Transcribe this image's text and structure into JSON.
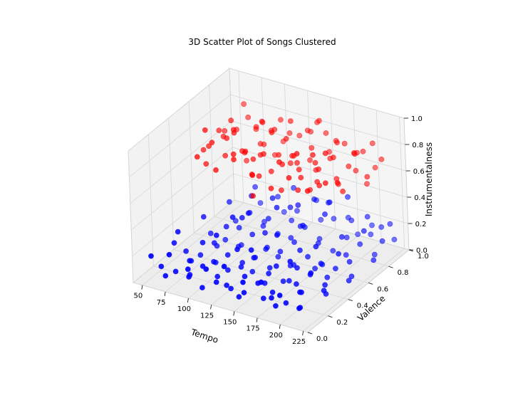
{
  "chart_data": {
    "type": "scatter",
    "projection": "3d",
    "title": "3D Scatter Plot of Songs Clustered",
    "xlabel": "Tempo",
    "ylabel": "Valence",
    "zlabel": "Instrumentalness",
    "xlim": [
      40,
      230
    ],
    "ylim": [
      0.0,
      1.0
    ],
    "zlim": [
      0.0,
      1.0
    ],
    "x_ticks": [
      "50",
      "75",
      "100",
      "125",
      "150",
      "175",
      "200",
      "225"
    ],
    "y_ticks": [
      "0.0",
      "0.2",
      "0.4",
      "0.6",
      "0.8",
      "1.0"
    ],
    "z_ticks": [
      "0.0",
      "0.2",
      "0.4",
      "0.6",
      "0.8",
      "1.0"
    ],
    "grid": true,
    "legend": "none",
    "series": [
      {
        "color": "#ff0000",
        "points": [
          [
            60,
            0.6,
            0.7
          ],
          [
            65,
            0.7,
            0.72
          ],
          [
            55,
            0.8,
            0.68
          ],
          [
            70,
            0.9,
            0.75
          ],
          [
            80,
            0.6,
            0.8
          ],
          [
            85,
            0.7,
            0.65
          ],
          [
            90,
            0.8,
            0.78
          ],
          [
            75,
            0.5,
            0.82
          ],
          [
            95,
            0.9,
            0.7
          ],
          [
            100,
            0.6,
            0.74
          ],
          [
            105,
            0.7,
            0.66
          ],
          [
            110,
            0.8,
            0.8
          ],
          [
            115,
            0.9,
            0.72
          ],
          [
            120,
            0.6,
            0.76
          ],
          [
            125,
            0.7,
            0.7
          ],
          [
            130,
            0.8,
            0.64
          ],
          [
            135,
            0.9,
            0.78
          ],
          [
            140,
            0.6,
            0.72
          ],
          [
            145,
            0.7,
            0.68
          ],
          [
            150,
            0.8,
            0.74
          ],
          [
            155,
            0.9,
            0.8
          ],
          [
            160,
            0.6,
            0.66
          ],
          [
            165,
            0.7,
            0.72
          ],
          [
            170,
            0.8,
            0.7
          ],
          [
            175,
            0.9,
            0.76
          ],
          [
            180,
            0.6,
            0.64
          ],
          [
            185,
            0.7,
            0.8
          ],
          [
            190,
            0.8,
            0.68
          ],
          [
            195,
            0.9,
            0.74
          ],
          [
            200,
            0.6,
            0.7
          ],
          [
            62,
            0.55,
            0.6
          ],
          [
            72,
            0.65,
            0.62
          ],
          [
            82,
            0.75,
            0.6
          ],
          [
            92,
            0.85,
            0.62
          ],
          [
            102,
            0.95,
            0.6
          ],
          [
            112,
            0.55,
            0.62
          ],
          [
            122,
            0.65,
            0.6
          ],
          [
            132,
            0.75,
            0.62
          ],
          [
            142,
            0.85,
            0.6
          ],
          [
            152,
            0.95,
            0.62
          ],
          [
            162,
            0.55,
            0.6
          ],
          [
            172,
            0.65,
            0.62
          ],
          [
            182,
            0.75,
            0.6
          ],
          [
            192,
            0.85,
            0.62
          ],
          [
            202,
            0.95,
            0.6
          ],
          [
            68,
            0.5,
            0.9
          ],
          [
            88,
            0.6,
            0.88
          ],
          [
            108,
            0.7,
            0.92
          ],
          [
            128,
            0.8,
            0.9
          ],
          [
            148,
            0.9,
            0.88
          ],
          [
            168,
            0.5,
            0.92
          ],
          [
            188,
            0.6,
            0.9
          ],
          [
            208,
            0.7,
            0.88
          ],
          [
            78,
            0.8,
            0.5
          ],
          [
            98,
            0.9,
            0.52
          ],
          [
            118,
            0.5,
            0.5
          ],
          [
            138,
            0.6,
            0.52
          ],
          [
            158,
            0.7,
            0.5
          ],
          [
            178,
            0.8,
            0.52
          ],
          [
            198,
            0.9,
            0.5
          ],
          [
            58,
            0.72,
            0.74
          ],
          [
            66,
            0.82,
            0.7
          ],
          [
            76,
            0.92,
            0.66
          ],
          [
            86,
            0.62,
            0.84
          ],
          [
            96,
            0.52,
            0.76
          ],
          [
            106,
            0.62,
            0.68
          ],
          [
            116,
            0.72,
            0.84
          ],
          [
            126,
            0.82,
            0.62
          ],
          [
            136,
            0.92,
            0.76
          ],
          [
            146,
            0.52,
            0.8
          ],
          [
            156,
            0.62,
            0.7
          ],
          [
            166,
            0.72,
            0.66
          ],
          [
            176,
            0.82,
            0.82
          ],
          [
            186,
            0.92,
            0.7
          ],
          [
            196,
            0.52,
            0.74
          ],
          [
            64,
            0.45,
            0.72
          ],
          [
            84,
            0.45,
            0.66
          ],
          [
            104,
            0.45,
            0.78
          ],
          [
            124,
            0.45,
            0.7
          ],
          [
            144,
            0.45,
            0.64
          ],
          [
            164,
            0.45,
            0.76
          ],
          [
            184,
            0.45,
            0.7
          ],
          [
            60,
            0.95,
            0.8
          ],
          [
            80,
            0.95,
            0.7
          ],
          [
            100,
            0.95,
            0.76
          ],
          [
            120,
            0.95,
            0.68
          ],
          [
            140,
            0.95,
            0.82
          ],
          [
            160,
            0.95,
            0.72
          ],
          [
            180,
            0.95,
            0.66
          ],
          [
            200,
            0.95,
            0.78
          ],
          [
            54,
            0.6,
            0.66
          ],
          [
            74,
            0.7,
            0.86
          ],
          [
            94,
            0.8,
            0.66
          ],
          [
            114,
            0.6,
            0.58
          ],
          [
            134,
            0.7,
            0.84
          ],
          [
            154,
            0.8,
            0.58
          ],
          [
            174,
            0.6,
            0.86
          ],
          [
            194,
            0.7,
            0.56
          ],
          [
            210,
            0.8,
            0.64
          ],
          [
            215,
            0.9,
            0.72
          ]
        ]
      },
      {
        "color": "#0000ff",
        "points": [
          [
            60,
            0.1,
            0.1
          ],
          [
            70,
            0.15,
            0.05
          ],
          [
            80,
            0.2,
            0.12
          ],
          [
            90,
            0.1,
            0.08
          ],
          [
            100,
            0.15,
            0.15
          ],
          [
            110,
            0.2,
            0.06
          ],
          [
            120,
            0.1,
            0.1
          ],
          [
            130,
            0.15,
            0.04
          ],
          [
            140,
            0.2,
            0.12
          ],
          [
            150,
            0.1,
            0.08
          ],
          [
            160,
            0.15,
            0.14
          ],
          [
            170,
            0.2,
            0.06
          ],
          [
            180,
            0.1,
            0.1
          ],
          [
            190,
            0.15,
            0.05
          ],
          [
            200,
            0.2,
            0.12
          ],
          [
            210,
            0.1,
            0.08
          ],
          [
            65,
            0.3,
            0.1
          ],
          [
            75,
            0.35,
            0.06
          ],
          [
            85,
            0.4,
            0.14
          ],
          [
            95,
            0.3,
            0.08
          ],
          [
            105,
            0.35,
            0.12
          ],
          [
            115,
            0.4,
            0.05
          ],
          [
            125,
            0.3,
            0.1
          ],
          [
            135,
            0.35,
            0.16
          ],
          [
            145,
            0.4,
            0.07
          ],
          [
            155,
            0.3,
            0.11
          ],
          [
            165,
            0.35,
            0.04
          ],
          [
            175,
            0.4,
            0.13
          ],
          [
            185,
            0.3,
            0.09
          ],
          [
            195,
            0.35,
            0.15
          ],
          [
            205,
            0.4,
            0.06
          ],
          [
            215,
            0.3,
            0.1
          ],
          [
            70,
            0.5,
            0.12
          ],
          [
            80,
            0.55,
            0.06
          ],
          [
            90,
            0.6,
            0.14
          ],
          [
            100,
            0.5,
            0.08
          ],
          [
            110,
            0.55,
            0.16
          ],
          [
            120,
            0.6,
            0.05
          ],
          [
            130,
            0.5,
            0.12
          ],
          [
            140,
            0.55,
            0.09
          ],
          [
            150,
            0.6,
            0.15
          ],
          [
            160,
            0.5,
            0.06
          ],
          [
            170,
            0.55,
            0.11
          ],
          [
            180,
            0.6,
            0.04
          ],
          [
            190,
            0.5,
            0.13
          ],
          [
            200,
            0.55,
            0.08
          ],
          [
            210,
            0.6,
            0.12
          ],
          [
            220,
            0.5,
            0.06
          ],
          [
            75,
            0.7,
            0.1
          ],
          [
            85,
            0.75,
            0.15
          ],
          [
            95,
            0.8,
            0.07
          ],
          [
            105,
            0.7,
            0.12
          ],
          [
            115,
            0.75,
            0.05
          ],
          [
            125,
            0.8,
            0.14
          ],
          [
            135,
            0.7,
            0.09
          ],
          [
            145,
            0.75,
            0.16
          ],
          [
            155,
            0.8,
            0.06
          ],
          [
            165,
            0.7,
            0.11
          ],
          [
            175,
            0.75,
            0.04
          ],
          [
            185,
            0.8,
            0.13
          ],
          [
            195,
            0.7,
            0.08
          ],
          [
            205,
            0.75,
            0.15
          ],
          [
            215,
            0.8,
            0.06
          ],
          [
            225,
            0.7,
            0.1
          ],
          [
            80,
            0.9,
            0.12
          ],
          [
            100,
            0.95,
            0.06
          ],
          [
            120,
            0.9,
            0.14
          ],
          [
            140,
            0.95,
            0.08
          ],
          [
            160,
            0.9,
            0.16
          ],
          [
            180,
            0.95,
            0.05
          ],
          [
            200,
            0.9,
            0.12
          ],
          [
            220,
            0.95,
            0.09
          ],
          [
            55,
            0.05,
            0.2
          ],
          [
            75,
            0.05,
            0.25
          ],
          [
            95,
            0.05,
            0.18
          ],
          [
            115,
            0.05,
            0.22
          ],
          [
            135,
            0.05,
            0.28
          ],
          [
            155,
            0.05,
            0.2
          ],
          [
            175,
            0.05,
            0.24
          ],
          [
            195,
            0.05,
            0.18
          ],
          [
            66,
            0.22,
            0.3
          ],
          [
            86,
            0.28,
            0.22
          ],
          [
            106,
            0.24,
            0.34
          ],
          [
            126,
            0.26,
            0.26
          ],
          [
            146,
            0.22,
            0.32
          ],
          [
            166,
            0.28,
            0.2
          ],
          [
            186,
            0.24,
            0.3
          ],
          [
            206,
            0.26,
            0.24
          ],
          [
            72,
            0.42,
            0.3
          ],
          [
            92,
            0.46,
            0.24
          ],
          [
            112,
            0.44,
            0.36
          ],
          [
            132,
            0.48,
            0.26
          ],
          [
            152,
            0.42,
            0.32
          ],
          [
            172,
            0.46,
            0.22
          ],
          [
            192,
            0.44,
            0.3
          ],
          [
            212,
            0.48,
            0.26
          ],
          [
            78,
            0.62,
            0.3
          ],
          [
            98,
            0.66,
            0.36
          ],
          [
            118,
            0.64,
            0.24
          ],
          [
            138,
            0.68,
            0.34
          ],
          [
            158,
            0.62,
            0.28
          ],
          [
            178,
            0.66,
            0.38
          ],
          [
            198,
            0.64,
            0.26
          ],
          [
            218,
            0.68,
            0.32
          ],
          [
            84,
            0.82,
            0.3
          ],
          [
            104,
            0.86,
            0.24
          ],
          [
            124,
            0.84,
            0.36
          ],
          [
            144,
            0.88,
            0.28
          ],
          [
            164,
            0.82,
            0.34
          ],
          [
            184,
            0.86,
            0.22
          ],
          [
            204,
            0.84,
            0.3
          ],
          [
            224,
            0.88,
            0.26
          ],
          [
            62,
            0.12,
            0.02
          ],
          [
            82,
            0.18,
            0.03
          ],
          [
            102,
            0.12,
            0.01
          ],
          [
            122,
            0.18,
            0.03
          ],
          [
            142,
            0.12,
            0.02
          ],
          [
            162,
            0.18,
            0.01
          ],
          [
            182,
            0.12,
            0.03
          ],
          [
            202,
            0.18,
            0.02
          ],
          [
            68,
            0.32,
            0.02
          ],
          [
            88,
            0.38,
            0.01
          ],
          [
            108,
            0.32,
            0.03
          ],
          [
            128,
            0.38,
            0.02
          ],
          [
            148,
            0.32,
            0.01
          ],
          [
            168,
            0.38,
            0.03
          ],
          [
            188,
            0.32,
            0.02
          ],
          [
            208,
            0.38,
            0.01
          ],
          [
            74,
            0.52,
            0.02
          ],
          [
            94,
            0.58,
            0.03
          ],
          [
            114,
            0.52,
            0.01
          ],
          [
            134,
            0.58,
            0.02
          ],
          [
            154,
            0.52,
            0.03
          ],
          [
            174,
            0.58,
            0.01
          ],
          [
            194,
            0.52,
            0.02
          ],
          [
            214,
            0.58,
            0.03
          ],
          [
            58,
            0.25,
            0.18
          ],
          [
            118,
            0.45,
            0.4
          ],
          [
            138,
            0.55,
            0.42
          ],
          [
            150,
            0.65,
            0.4
          ],
          [
            160,
            0.72,
            0.42
          ],
          [
            170,
            0.78,
            0.38
          ],
          [
            182,
            0.85,
            0.4
          ],
          [
            112,
            0.35,
            0.42
          ],
          [
            128,
            0.6,
            0.44
          ],
          [
            146,
            0.7,
            0.2
          ],
          [
            176,
            0.9,
            0.2
          ],
          [
            196,
            0.95,
            0.15
          ],
          [
            212,
            0.9,
            0.2
          ],
          [
            224,
            0.8,
            0.18
          ]
        ]
      }
    ]
  }
}
